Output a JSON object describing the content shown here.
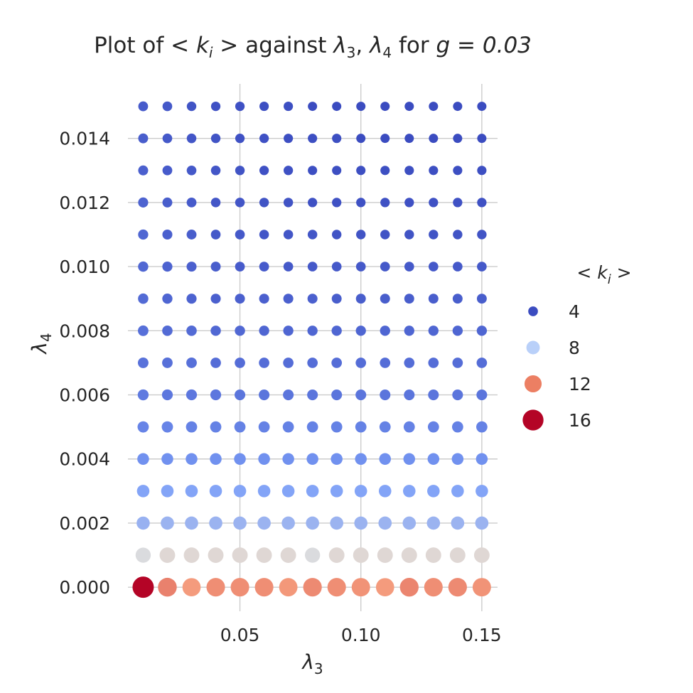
{
  "chart_data": {
    "type": "scatter",
    "title": "Plot of  < k_i >  against λ3, λ4 for g = 0.03",
    "title_parts": {
      "prefix": "Plot of ",
      "mid": " against ",
      "suffix": " for ",
      "g": "g = 0.03"
    },
    "xlabel": "λ3",
    "ylabel": "λ4",
    "xlim": [
      0.0037,
      0.1565
    ],
    "ylim": [
      -0.00075,
      0.0157
    ],
    "x_ticks": [
      "0.05",
      "0.10",
      "0.15"
    ],
    "x_tick_values": [
      0.05,
      0.1,
      0.15
    ],
    "y_ticks": [
      "0.000",
      "0.002",
      "0.004",
      "0.006",
      "0.008",
      "0.010",
      "0.012",
      "0.014"
    ],
    "y_tick_values": [
      0.0,
      0.002,
      0.004,
      0.006,
      0.008,
      0.01,
      0.012,
      0.014
    ],
    "grid": true,
    "colormap": "coolwarm",
    "size_and_hue_variable": "<k_i>",
    "value_range": [
      3.5,
      16.5
    ],
    "x": [
      0.01,
      0.02,
      0.03,
      0.04,
      0.05,
      0.06,
      0.07,
      0.08,
      0.09,
      0.1,
      0.11,
      0.12,
      0.13,
      0.14,
      0.15
    ],
    "y": [
      0.0,
      0.001,
      0.002,
      0.003,
      0.004,
      0.005,
      0.006,
      0.007,
      0.008,
      0.009,
      0.01,
      0.011,
      0.012,
      0.013,
      0.014,
      0.015
    ],
    "values": [
      [
        16.5,
        13.8,
        13.2,
        13.5,
        13.5,
        13.5,
        13.3,
        13.6,
        13.5,
        13.4,
        13.2,
        13.7,
        13.5,
        13.6,
        13.4
      ],
      [
        9.9,
        10.3,
        10.3,
        10.3,
        10.3,
        10.3,
        10.3,
        9.9,
        10.3,
        10.3,
        10.3,
        10.3,
        10.3,
        10.3,
        10.3
      ],
      [
        7.7,
        7.8,
        7.8,
        7.8,
        7.8,
        7.8,
        7.8,
        7.8,
        7.8,
        7.8,
        7.8,
        7.8,
        7.8,
        7.8,
        7.8
      ],
      [
        7.0,
        7.0,
        7.0,
        7.0,
        7.0,
        7.0,
        7.0,
        7.0,
        7.0,
        7.0,
        7.0,
        7.0,
        7.0,
        7.0,
        7.0
      ],
      [
        6.2,
        6.2,
        6.2,
        6.2,
        6.2,
        6.2,
        6.2,
        6.2,
        6.2,
        6.2,
        6.2,
        6.2,
        6.2,
        6.2,
        6.2
      ],
      [
        5.7,
        5.7,
        5.6,
        5.6,
        5.6,
        5.6,
        5.6,
        5.6,
        5.6,
        5.6,
        5.6,
        5.6,
        5.6,
        5.6,
        5.6
      ],
      [
        5.3,
        5.2,
        5.2,
        5.2,
        5.1,
        5.1,
        5.1,
        5.1,
        5.1,
        5.1,
        5.1,
        5.1,
        5.1,
        5.1,
        5.1
      ],
      [
        5.0,
        4.9,
        4.9,
        4.8,
        4.8,
        4.8,
        4.8,
        4.8,
        4.8,
        4.8,
        4.8,
        4.8,
        4.8,
        4.8,
        4.8
      ],
      [
        4.9,
        4.7,
        4.7,
        4.6,
        4.6,
        4.5,
        4.5,
        4.5,
        4.5,
        4.5,
        4.5,
        4.5,
        4.5,
        4.5,
        4.5
      ],
      [
        4.7,
        4.5,
        4.4,
        4.3,
        4.3,
        4.3,
        4.3,
        4.3,
        4.2,
        4.2,
        4.2,
        4.2,
        4.2,
        4.2,
        4.2
      ],
      [
        4.6,
        4.4,
        4.3,
        4.2,
        4.1,
        4.1,
        4.0,
        4.0,
        4.0,
        4.0,
        4.0,
        4.0,
        4.0,
        4.0,
        4.0
      ],
      [
        4.5,
        4.3,
        4.2,
        4.0,
        4.0,
        3.9,
        3.9,
        3.9,
        3.8,
        3.8,
        3.8,
        3.8,
        3.8,
        3.8,
        3.8
      ],
      [
        4.4,
        4.2,
        4.1,
        3.9,
        3.9,
        3.8,
        3.8,
        3.7,
        3.7,
        3.7,
        3.7,
        3.7,
        3.7,
        3.7,
        3.7
      ],
      [
        4.3,
        4.1,
        4.0,
        3.9,
        3.8,
        3.7,
        3.7,
        3.6,
        3.6,
        3.6,
        3.6,
        3.6,
        3.6,
        3.6,
        3.6
      ],
      [
        4.2,
        4.0,
        3.9,
        3.8,
        3.7,
        3.7,
        3.6,
        3.6,
        3.6,
        3.5,
        3.5,
        3.5,
        3.5,
        3.5,
        3.5
      ],
      [
        4.1,
        4.0,
        3.8,
        3.7,
        3.7,
        3.6,
        3.6,
        3.5,
        3.5,
        3.5,
        3.5,
        3.5,
        3.5,
        3.5,
        3.5
      ]
    ],
    "legend": {
      "title": "< k_i >",
      "placement": "right",
      "entries": [
        {
          "label": "4",
          "value": 4,
          "color": "#3b4cc0"
        },
        {
          "label": "8",
          "value": 8,
          "color": "#b9d0f9"
        },
        {
          "label": "12",
          "value": 12,
          "color": "#ec7f63"
        },
        {
          "label": "16",
          "value": 16,
          "color": "#b40426"
        }
      ]
    }
  }
}
